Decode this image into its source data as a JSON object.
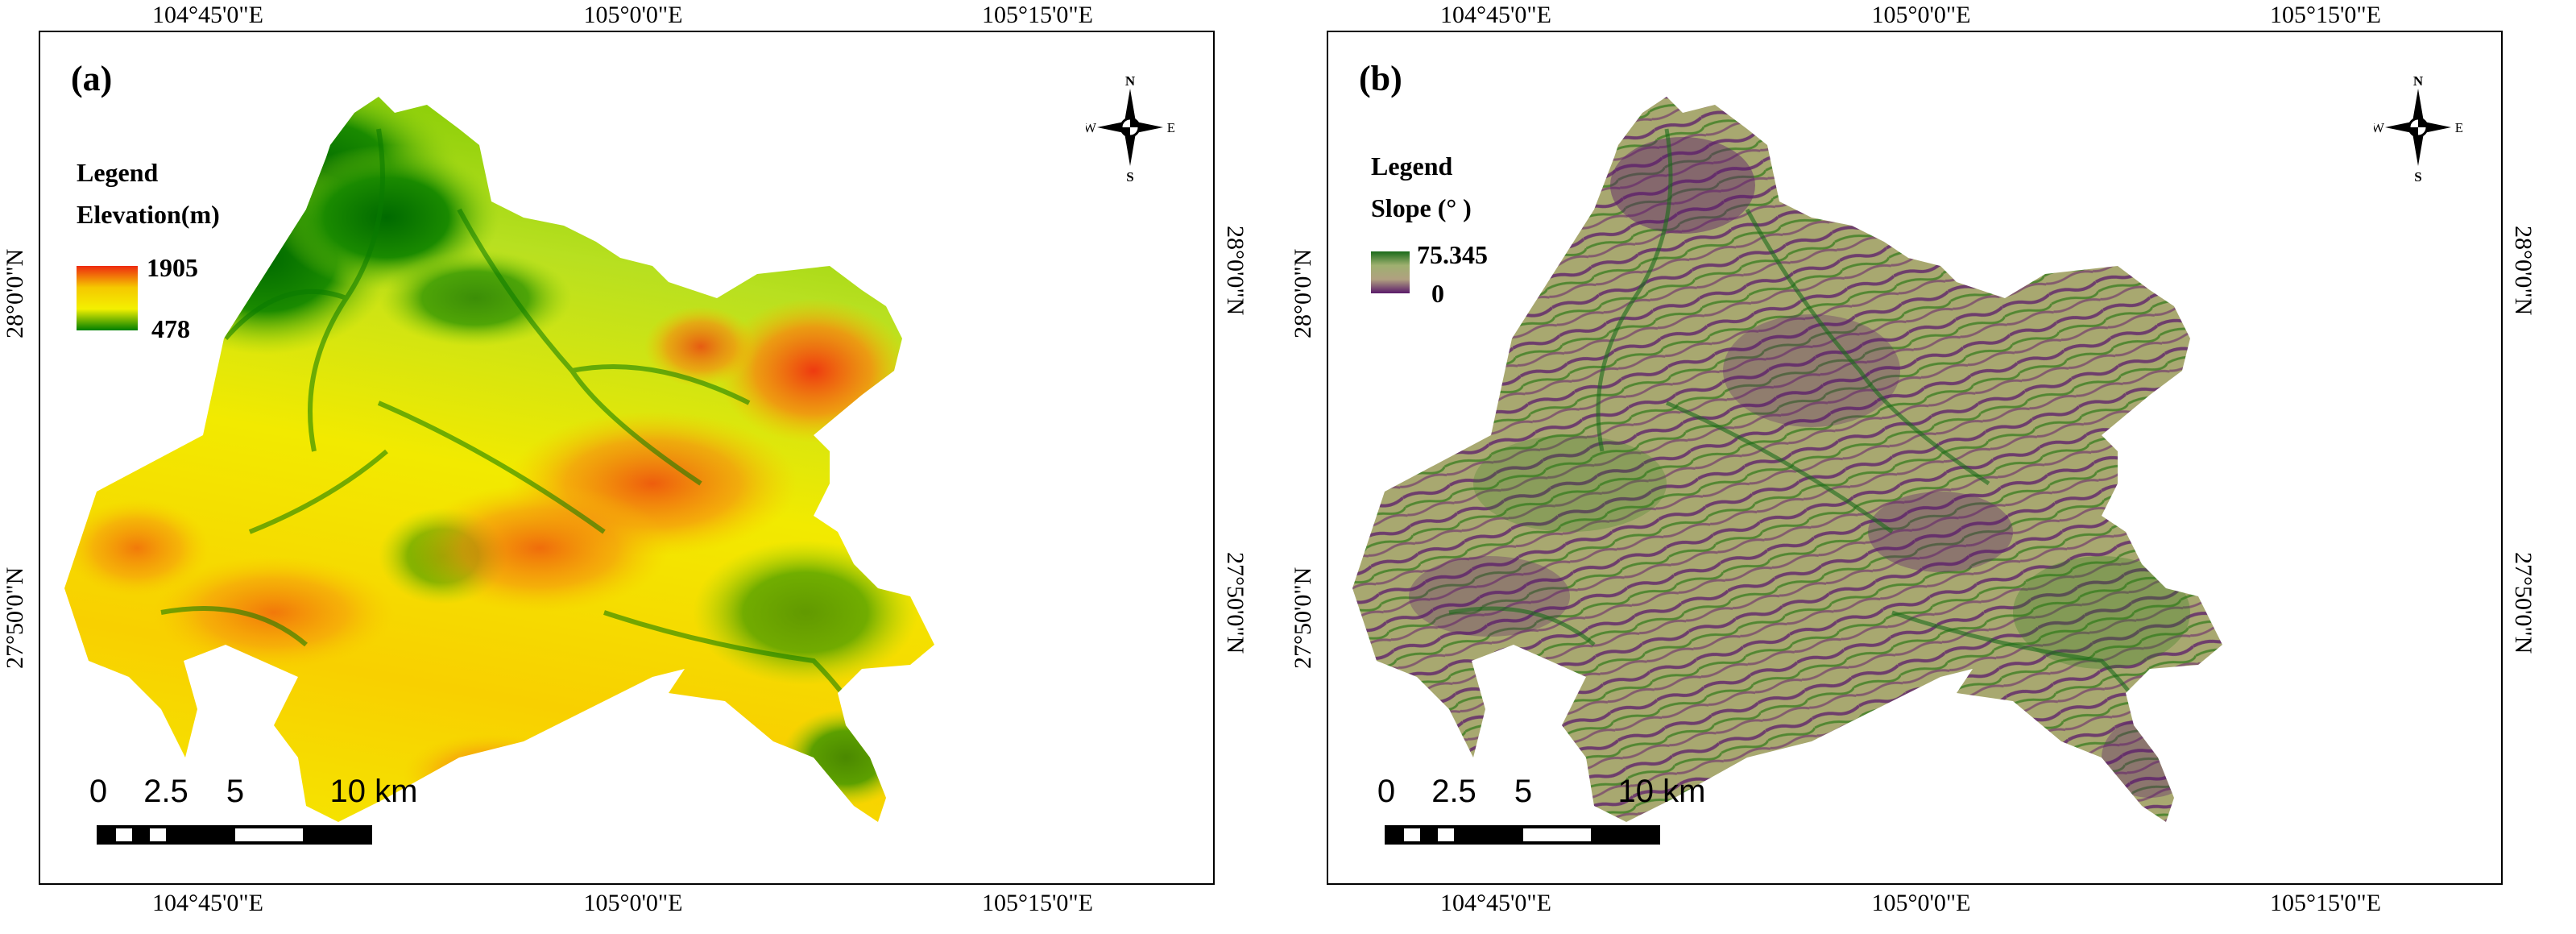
{
  "panels": {
    "a": {
      "label": "(a)",
      "legend_title": "Legend",
      "legend_variable": "Elevation(m)",
      "ramp_max": "1905",
      "ramp_min": "478",
      "ramp_colors": [
        "#ee2a10",
        "#f5c800",
        "#f3f000",
        "#008000"
      ]
    },
    "b": {
      "label": "(b)",
      "legend_title": "Legend",
      "legend_variable": "Slope (° )",
      "ramp_max": "75.345",
      "ramp_min": "0",
      "ramp_colors": [
        "#1a6b1a",
        "#9fb070",
        "#b0a080",
        "#5a1a6a"
      ]
    }
  },
  "graticule": {
    "lon_top": [
      "104°45'0\"E",
      "105°0'0\"E",
      "105°15'0\"E"
    ],
    "lon_bottom": [
      "104°45'0\"E",
      "105°0'0\"E",
      "105°15'0\"E"
    ],
    "lat_left": [
      "28°0'0\"N",
      "27°50'0\"N"
    ],
    "lat_right": [
      "28°0'0\"N",
      "27°50'0\"N"
    ]
  },
  "scale_bar": {
    "ticks": [
      "0",
      "2.5",
      "5",
      "10 km"
    ]
  },
  "north_arrow": {
    "n": "N",
    "s": "S",
    "e": "E",
    "w": "W"
  },
  "colors": {
    "elev_high": "#ee2a10",
    "elev_mid": "#f3f000",
    "elev_low": "#008000",
    "slope_mid": "#a8a870",
    "slope_low": "#5a1a6a",
    "slope_high": "#1a6b1a"
  }
}
